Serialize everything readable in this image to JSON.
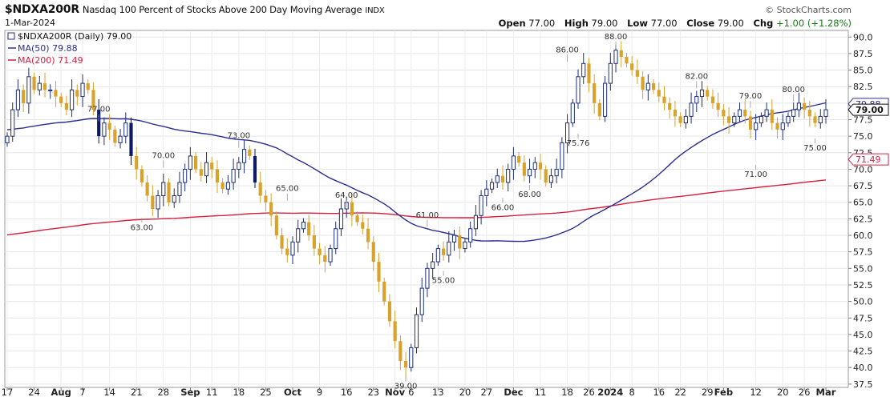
{
  "header": {
    "symbol": "$NDXA200R",
    "description": "Nasdaq 100 Percent of Stocks Above 200 Day Moving Average",
    "exchange": "INDX",
    "date": "1-Mar-2024",
    "credit": "© StockCharts.com",
    "quote": {
      "open_label": "Open",
      "open": "77.00",
      "high_label": "High",
      "high": "79.00",
      "low_label": "Low",
      "low": "77.00",
      "close_label": "Close",
      "close": "79.00",
      "chg_label": "Chg",
      "chg": "+1.00 (+1.28%)"
    }
  },
  "legend": {
    "price": "$NDXA200R (Daily) 79.00",
    "ma50": "MA(50) 79.88",
    "ma200": "MA(200) 71.49"
  },
  "colors": {
    "up": "#1f2f7a",
    "down_fill": "#d9a22b",
    "down_dark": "#0c1a66",
    "ma50": "#2a2f8f",
    "ma200": "#d62040",
    "annotation": "#333333"
  },
  "chart_data": {
    "type": "candlestick",
    "y_axis": {
      "ylim": [
        37,
        91
      ],
      "side": "right",
      "ticks": [
        "90.0",
        "87.5",
        "85.0",
        "82.5",
        "80.0",
        "77.5",
        "75.0",
        "72.5",
        "70.0",
        "67.5",
        "65.0",
        "62.5",
        "60.0",
        "57.5",
        "55.0",
        "52.5",
        "50.0",
        "47.5",
        "45.0",
        "42.5",
        "40.0",
        "37.5"
      ]
    },
    "x_axis": {
      "ticks": [
        {
          "label": "17",
          "i": 0
        },
        {
          "label": "24",
          "i": 5
        },
        {
          "label": "Aug",
          "i": 10,
          "bold": true
        },
        {
          "label": "7",
          "i": 14
        },
        {
          "label": "14",
          "i": 19
        },
        {
          "label": "21",
          "i": 24
        },
        {
          "label": "28",
          "i": 29
        },
        {
          "label": "Sep",
          "i": 34,
          "bold": true
        },
        {
          "label": "11",
          "i": 38
        },
        {
          "label": "18",
          "i": 43
        },
        {
          "label": "25",
          "i": 48
        },
        {
          "label": "Oct",
          "i": 53,
          "bold": true
        },
        {
          "label": "9",
          "i": 58
        },
        {
          "label": "16",
          "i": 63
        },
        {
          "label": "23",
          "i": 68
        },
        {
          "label": "Nov",
          "i": 72,
          "bold": true
        },
        {
          "label": "6",
          "i": 75
        },
        {
          "label": "13",
          "i": 80
        },
        {
          "label": "20",
          "i": 85
        },
        {
          "label": "27",
          "i": 89
        },
        {
          "label": "Dec",
          "i": 94,
          "bold": true
        },
        {
          "label": "11",
          "i": 99
        },
        {
          "label": "18",
          "i": 104
        },
        {
          "label": "26",
          "i": 108
        },
        {
          "label": "2024",
          "i": 112,
          "bold": true
        },
        {
          "label": "8",
          "i": 116
        },
        {
          "label": "16",
          "i": 121
        },
        {
          "label": "22",
          "i": 125
        },
        {
          "label": "29",
          "i": 130
        },
        {
          "label": "Feb",
          "i": 133,
          "bold": true
        },
        {
          "label": "12",
          "i": 139
        },
        {
          "label": "20",
          "i": 144
        },
        {
          "label": "26",
          "i": 148
        },
        {
          "label": "Mar",
          "i": 152,
          "bold": true
        }
      ]
    },
    "closes": [
      75,
      79,
      82,
      80,
      84,
      82,
      83,
      82,
      82,
      81,
      80,
      79,
      82,
      81,
      83,
      82,
      79,
      75,
      77,
      76,
      74,
      75,
      77,
      72,
      70,
      68,
      66,
      64,
      66,
      68,
      65,
      66,
      68,
      70,
      72,
      70,
      69,
      71,
      70,
      68,
      67,
      68,
      70,
      71,
      73,
      72,
      68,
      66,
      65,
      63,
      60,
      58,
      57,
      59,
      61,
      62,
      60,
      58,
      57,
      56,
      58,
      61,
      64,
      65,
      63,
      62,
      61,
      59,
      56,
      53,
      50,
      47,
      44,
      41,
      40,
      43,
      48,
      52,
      55,
      56,
      58,
      57,
      59,
      60,
      58,
      59,
      61,
      63,
      66,
      67,
      68,
      69,
      68,
      70,
      72,
      71,
      69,
      70,
      71,
      70,
      68,
      69,
      70,
      74,
      77,
      80,
      84,
      86,
      83,
      80,
      78,
      83,
      86,
      88,
      87,
      86,
      85,
      84,
      82,
      83,
      82,
      81,
      80,
      79,
      78,
      77,
      78,
      80,
      81,
      82,
      81,
      80,
      79,
      78,
      77,
      78,
      79,
      78,
      76,
      77,
      78,
      79,
      77,
      76,
      77,
      78,
      79,
      80,
      79,
      78,
      77,
      78,
      79
    ],
    "annotations": [
      {
        "label": "77.00",
        "value": 77,
        "pos": "above",
        "i": 17
      },
      {
        "label": "70.00",
        "value": 70,
        "pos": "above",
        "i": 29
      },
      {
        "label": "73.00",
        "value": 73,
        "pos": "above",
        "i": 43
      },
      {
        "label": "63.00",
        "value": 63,
        "pos": "below",
        "i": 25
      },
      {
        "label": "65.00",
        "value": 65,
        "pos": "above",
        "i": 52
      },
      {
        "label": "64.00",
        "value": 64,
        "pos": "above",
        "i": 63
      },
      {
        "label": "61.00",
        "value": 61,
        "pos": "above",
        "i": 78
      },
      {
        "label": "55.00",
        "value": 55,
        "pos": "below",
        "i": 81
      },
      {
        "label": "39.00",
        "value": 39,
        "pos": "below",
        "i": 74
      },
      {
        "label": "86.00",
        "value": 86,
        "pos": "above",
        "i": 104
      },
      {
        "label": "88.00",
        "value": 88,
        "pos": "above",
        "i": 113
      },
      {
        "label": "75.76",
        "value": 75.76,
        "pos": "below",
        "i": 106
      },
      {
        "label": "66.00",
        "value": 66,
        "pos": "below",
        "i": 92
      },
      {
        "label": "68.00",
        "value": 68,
        "pos": "below",
        "i": 97
      },
      {
        "label": "82.00",
        "value": 82,
        "pos": "above",
        "i": 128
      },
      {
        "label": "79.00",
        "value": 79,
        "pos": "above",
        "i": 138
      },
      {
        "label": "80.00",
        "value": 80,
        "pos": "above",
        "i": 146
      },
      {
        "label": "71.00",
        "value": 71,
        "pos": "below",
        "i": 139
      },
      {
        "label": "75.00",
        "value": 75,
        "pos": "below",
        "i": 150
      }
    ],
    "price_tags": [
      {
        "label": "79.88",
        "value": 79.88,
        "kind": "ma50"
      },
      {
        "label": "79.00",
        "value": 79,
        "kind": "price"
      },
      {
        "label": "71.49",
        "value": 71.49,
        "kind": "ma200"
      }
    ]
  }
}
